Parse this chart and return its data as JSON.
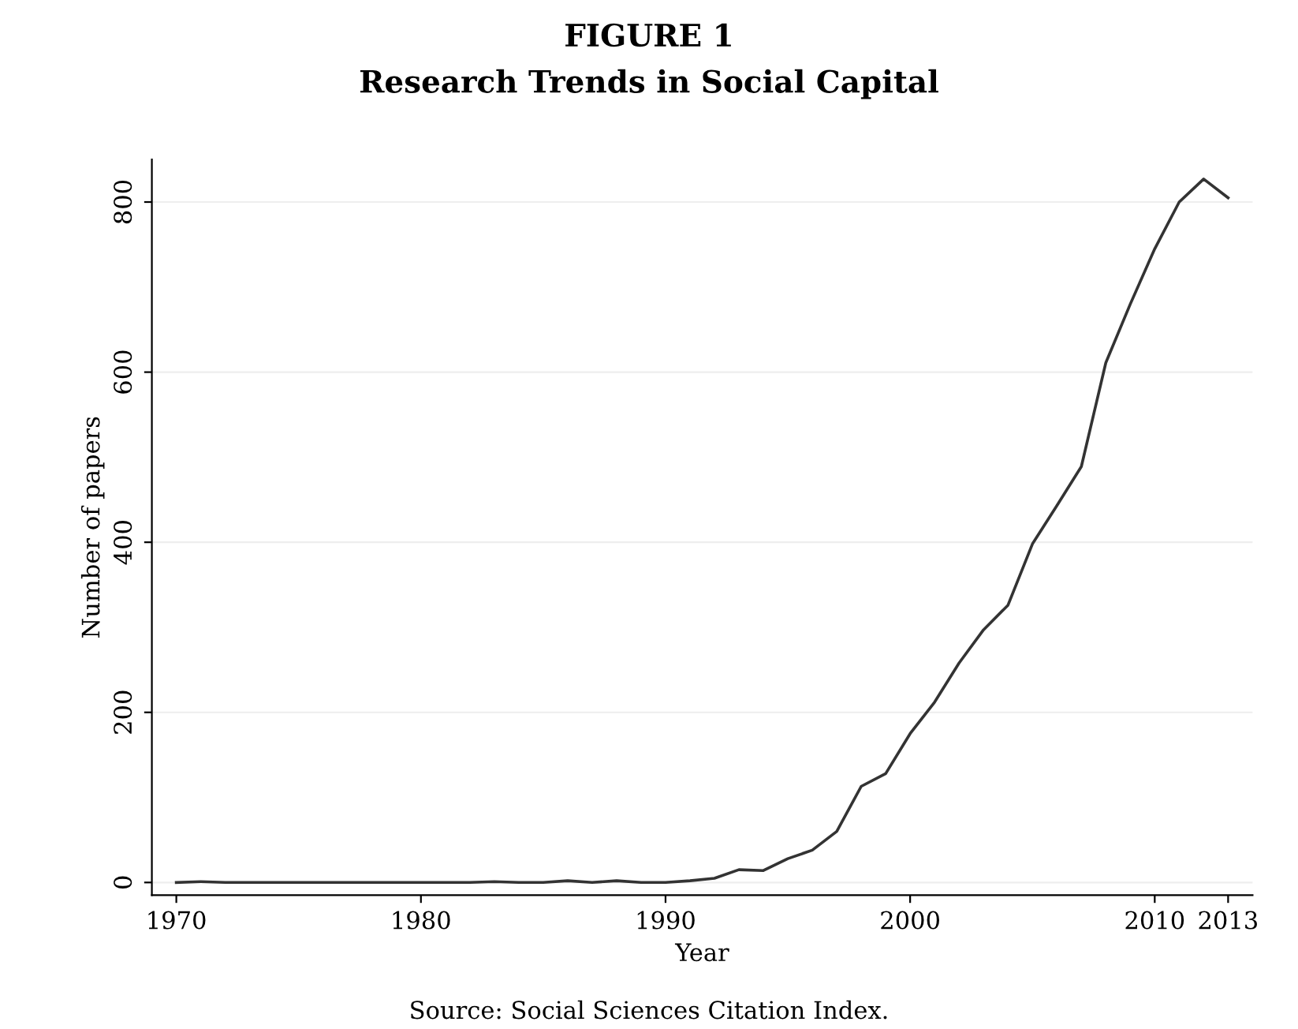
{
  "chart_data": {
    "type": "line",
    "title": "FIGURE 1",
    "subtitle": "Research Trends in Social Capital",
    "xlabel": "Year",
    "ylabel": "Number of papers",
    "annotations": [
      "Source: Social Sciences Citation Index."
    ],
    "x": [
      1970,
      1971,
      1972,
      1973,
      1974,
      1975,
      1976,
      1977,
      1978,
      1979,
      1980,
      1981,
      1982,
      1983,
      1984,
      1985,
      1986,
      1987,
      1988,
      1989,
      1990,
      1991,
      1992,
      1993,
      1994,
      1995,
      1996,
      1997,
      1998,
      1999,
      2000,
      2001,
      2002,
      2003,
      2004,
      2005,
      2006,
      2007,
      2008,
      2009,
      2010,
      2011,
      2012,
      2013
    ],
    "series": [
      {
        "color": "#333333",
        "values": [
          0,
          1,
          0,
          0,
          0,
          0,
          0,
          0,
          0,
          0,
          0,
          0,
          0,
          1,
          0,
          0,
          2,
          0,
          2,
          0,
          0,
          2,
          5,
          15,
          14,
          28,
          38,
          60,
          113,
          128,
          175,
          212,
          258,
          297,
          326,
          398,
          443,
          489,
          611,
          680,
          745,
          800,
          827,
          805
        ]
      }
    ],
    "xlim": [
      1969,
      2014
    ],
    "ylim": [
      -15,
      850
    ],
    "xticks": [
      1970,
      1980,
      1990,
      2000,
      2010,
      2013
    ],
    "yticks": [
      0,
      200,
      400,
      600,
      800
    ],
    "grid": "y",
    "legend": false,
    "marker": "none",
    "line_style": "solid"
  }
}
